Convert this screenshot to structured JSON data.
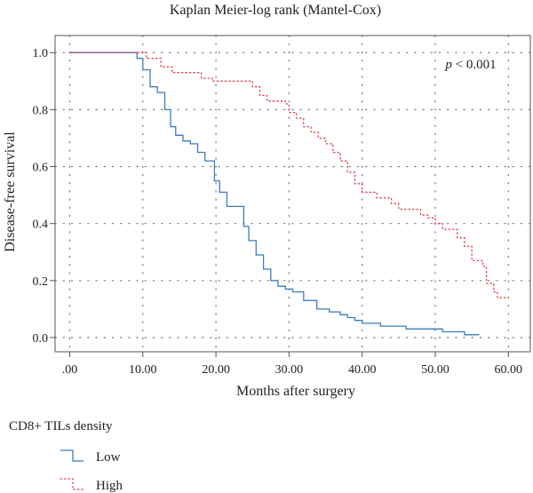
{
  "chart_data": {
    "type": "line",
    "title": "Kaplan Meier-log rank (Mantel-Cox)",
    "xlabel": "Months after surgery",
    "ylabel": "Disease-free survival",
    "xlim": [
      -2,
      63
    ],
    "ylim": [
      -0.05,
      1.06
    ],
    "x_ticks": [
      0,
      10,
      20,
      30,
      40,
      50,
      60
    ],
    "x_tick_labels": [
      ".00",
      "10.00",
      "20.00",
      "30.00",
      "40.00",
      "50.00",
      "60.00"
    ],
    "y_ticks": [
      0,
      0.2,
      0.4,
      0.6,
      0.8,
      1.0
    ],
    "y_tick_labels": [
      "0.0",
      "0.2",
      "0.4",
      "0.6",
      "0.8",
      "1.0"
    ],
    "grid": true,
    "annotation": {
      "italic": "p",
      "text": " < 0.001"
    },
    "legend": {
      "title": "CD8+ TILs density",
      "position": "bottom-left"
    },
    "series": [
      {
        "name": "Low",
        "color": "#3a7cc0",
        "style": "solid",
        "points": [
          [
            0,
            1.0
          ],
          [
            9.2,
            1.0
          ],
          [
            9.2,
            0.98
          ],
          [
            10,
            0.98
          ],
          [
            10,
            0.94
          ],
          [
            11,
            0.94
          ],
          [
            11,
            0.88
          ],
          [
            12,
            0.88
          ],
          [
            12,
            0.86
          ],
          [
            13,
            0.86
          ],
          [
            13,
            0.8
          ],
          [
            13.8,
            0.8
          ],
          [
            13.8,
            0.74
          ],
          [
            14.5,
            0.74
          ],
          [
            14.5,
            0.71
          ],
          [
            15.5,
            0.71
          ],
          [
            15.5,
            0.69
          ],
          [
            16.5,
            0.69
          ],
          [
            16.5,
            0.68
          ],
          [
            17.5,
            0.68
          ],
          [
            17.5,
            0.65
          ],
          [
            18.5,
            0.65
          ],
          [
            18.5,
            0.62
          ],
          [
            19.8,
            0.62
          ],
          [
            19.8,
            0.55
          ],
          [
            20.5,
            0.55
          ],
          [
            20.5,
            0.51
          ],
          [
            21.5,
            0.51
          ],
          [
            21.5,
            0.46
          ],
          [
            23.8,
            0.46
          ],
          [
            23.8,
            0.39
          ],
          [
            24.5,
            0.39
          ],
          [
            24.5,
            0.34
          ],
          [
            25.5,
            0.34
          ],
          [
            25.5,
            0.29
          ],
          [
            26.5,
            0.29
          ],
          [
            26.5,
            0.24
          ],
          [
            27.5,
            0.24
          ],
          [
            27.5,
            0.2
          ],
          [
            28.5,
            0.2
          ],
          [
            28.5,
            0.18
          ],
          [
            29.5,
            0.18
          ],
          [
            29.5,
            0.17
          ],
          [
            30.5,
            0.17
          ],
          [
            30.5,
            0.16
          ],
          [
            32,
            0.16
          ],
          [
            32,
            0.13
          ],
          [
            33.8,
            0.13
          ],
          [
            33.8,
            0.1
          ],
          [
            35.5,
            0.1
          ],
          [
            35.5,
            0.09
          ],
          [
            37,
            0.09
          ],
          [
            37,
            0.08
          ],
          [
            38,
            0.08
          ],
          [
            38,
            0.07
          ],
          [
            39,
            0.07
          ],
          [
            39,
            0.06
          ],
          [
            40,
            0.06
          ],
          [
            40,
            0.05
          ],
          [
            42.5,
            0.05
          ],
          [
            42.5,
            0.04
          ],
          [
            46,
            0.04
          ],
          [
            46,
            0.03
          ],
          [
            51,
            0.03
          ],
          [
            51,
            0.02
          ],
          [
            54,
            0.02
          ],
          [
            54,
            0.01
          ],
          [
            56,
            0.01
          ]
        ]
      },
      {
        "name": "High",
        "color": "#e03a48",
        "style": "dotted",
        "points": [
          [
            0,
            1.0
          ],
          [
            10.5,
            1.0
          ],
          [
            10.5,
            0.98
          ],
          [
            12.5,
            0.98
          ],
          [
            12.5,
            0.95
          ],
          [
            14,
            0.95
          ],
          [
            14,
            0.93
          ],
          [
            18,
            0.93
          ],
          [
            18,
            0.91
          ],
          [
            19.5,
            0.91
          ],
          [
            19.5,
            0.9
          ],
          [
            25,
            0.9
          ],
          [
            25,
            0.88
          ],
          [
            26,
            0.88
          ],
          [
            26,
            0.85
          ],
          [
            27,
            0.85
          ],
          [
            27,
            0.83
          ],
          [
            29.5,
            0.83
          ],
          [
            29.5,
            0.82
          ],
          [
            30,
            0.82
          ],
          [
            30,
            0.79
          ],
          [
            31,
            0.79
          ],
          [
            31,
            0.77
          ],
          [
            32,
            0.77
          ],
          [
            32,
            0.74
          ],
          [
            33,
            0.74
          ],
          [
            33,
            0.72
          ],
          [
            34,
            0.72
          ],
          [
            34,
            0.7
          ],
          [
            35,
            0.7
          ],
          [
            35,
            0.68
          ],
          [
            36,
            0.68
          ],
          [
            36,
            0.65
          ],
          [
            37,
            0.65
          ],
          [
            37,
            0.62
          ],
          [
            38,
            0.62
          ],
          [
            38,
            0.58
          ],
          [
            39,
            0.58
          ],
          [
            39,
            0.54
          ],
          [
            40,
            0.54
          ],
          [
            40,
            0.51
          ],
          [
            42,
            0.51
          ],
          [
            42,
            0.49
          ],
          [
            44,
            0.49
          ],
          [
            44,
            0.47
          ],
          [
            45,
            0.47
          ],
          [
            45,
            0.45
          ],
          [
            48,
            0.45
          ],
          [
            48,
            0.43
          ],
          [
            49,
            0.43
          ],
          [
            49,
            0.42
          ],
          [
            50,
            0.42
          ],
          [
            50,
            0.4
          ],
          [
            51,
            0.4
          ],
          [
            51,
            0.38
          ],
          [
            53,
            0.38
          ],
          [
            53,
            0.35
          ],
          [
            54,
            0.35
          ],
          [
            54,
            0.32
          ],
          [
            55,
            0.32
          ],
          [
            55,
            0.27
          ],
          [
            56.5,
            0.27
          ],
          [
            56.5,
            0.25
          ],
          [
            57,
            0.25
          ],
          [
            57,
            0.19
          ],
          [
            58,
            0.19
          ],
          [
            58,
            0.16
          ],
          [
            58.5,
            0.16
          ],
          [
            58.5,
            0.14
          ],
          [
            60,
            0.14
          ]
        ]
      }
    ]
  }
}
